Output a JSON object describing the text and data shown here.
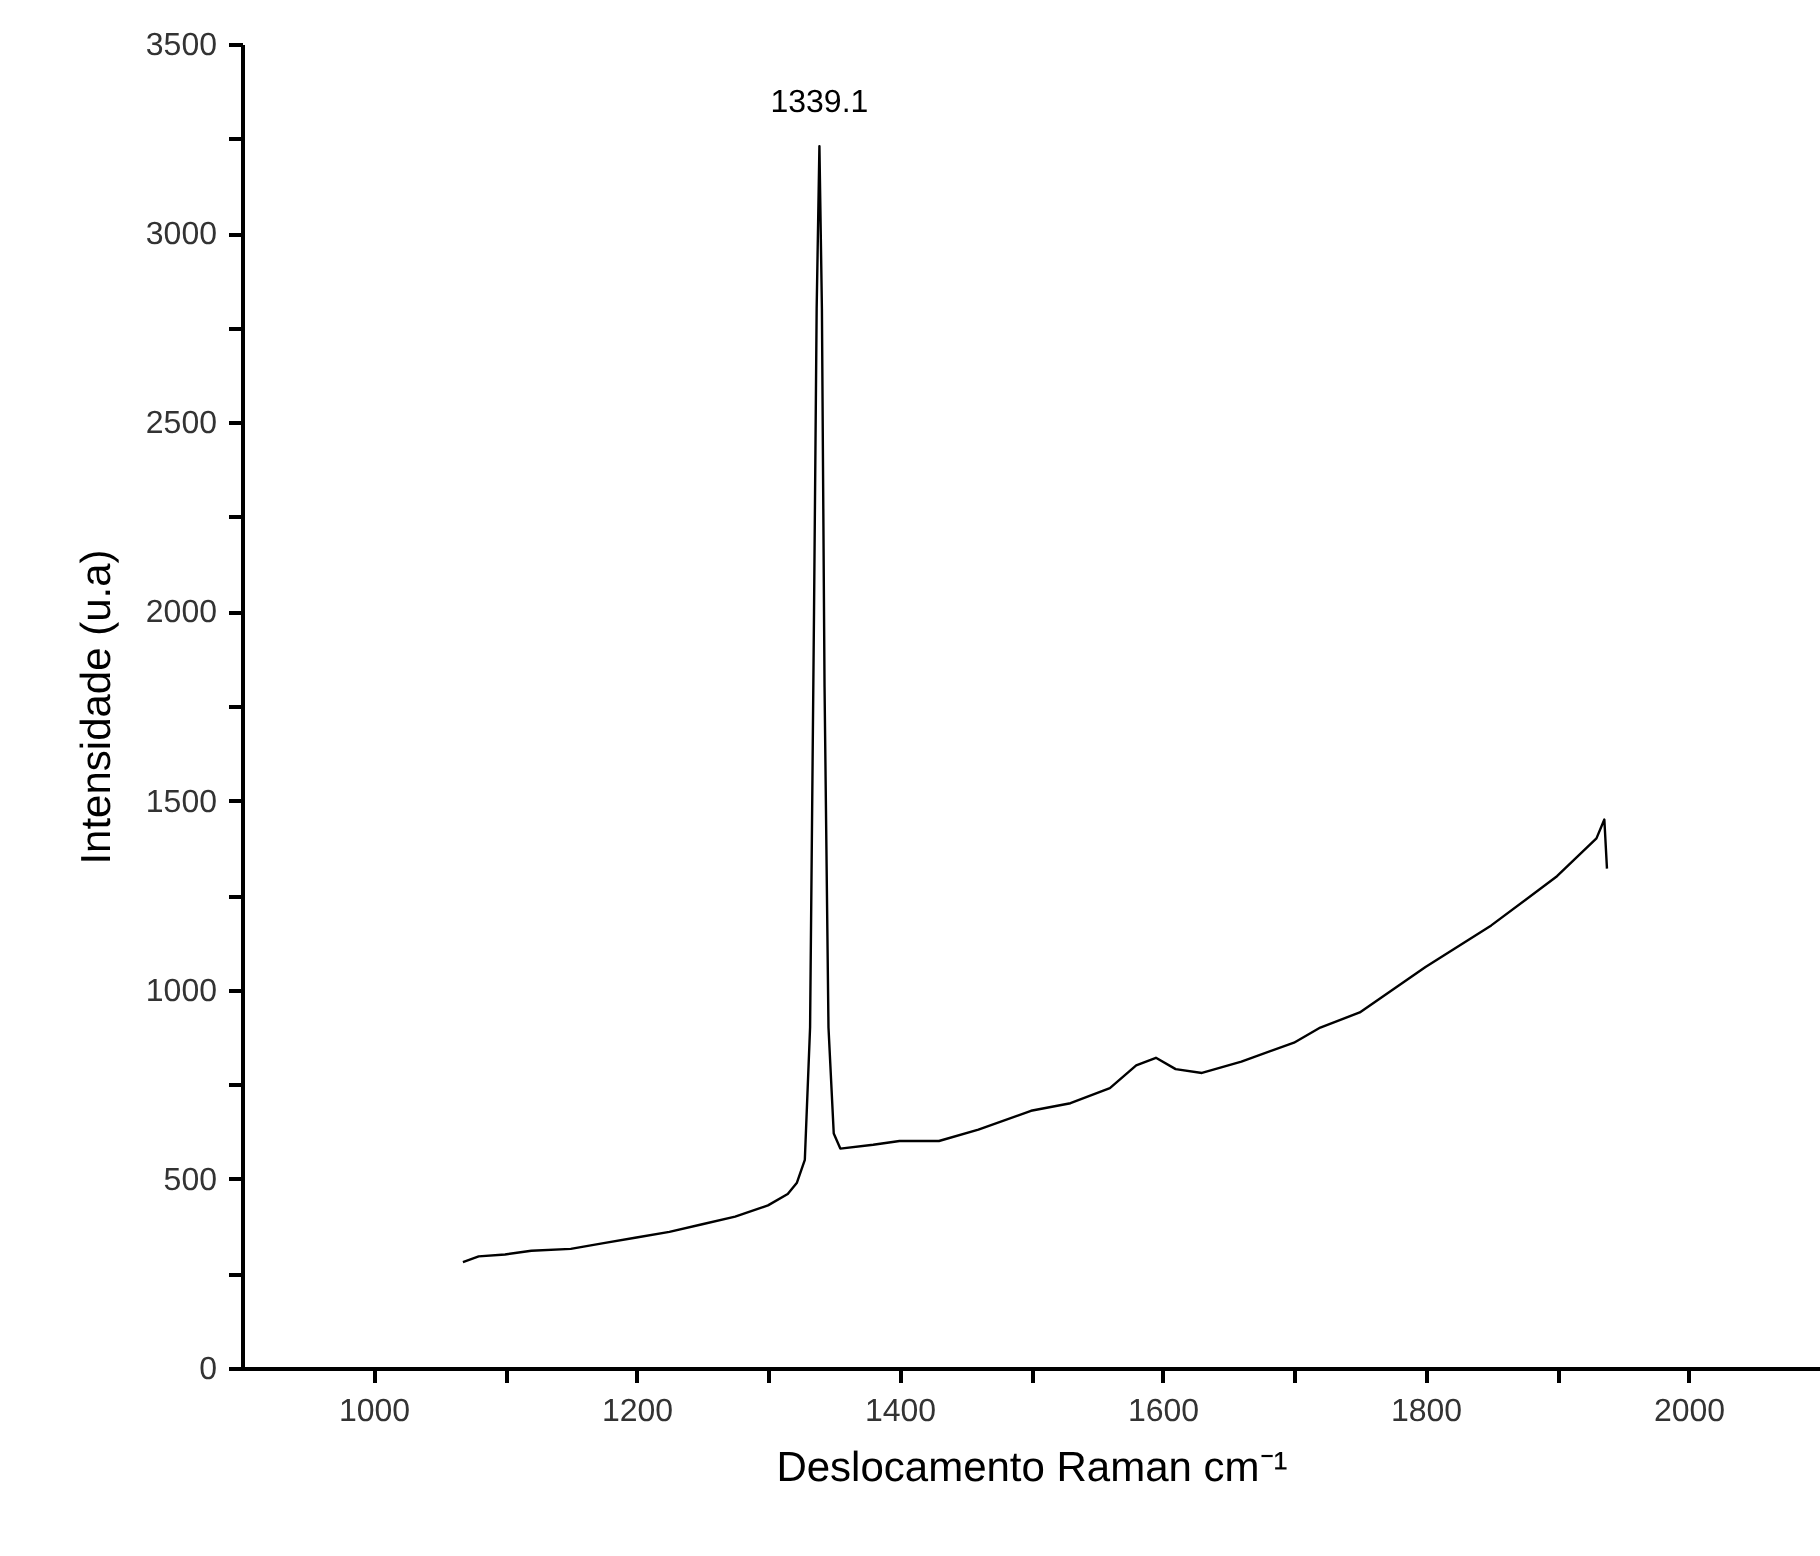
{
  "chart_data": {
    "type": "line",
    "xlabel": "Deslocamento Raman cm⁻¹",
    "ylabel": "Intensidade (u.a)",
    "xlim": [
      900,
      2100
    ],
    "xticks": [
      1000,
      {
        "value": 1100,
        "label": null
      },
      1200,
      {
        "value": 1300,
        "label": null
      },
      1400,
      {
        "value": 1500,
        "label": null
      },
      1600,
      {
        "value": 1700,
        "label": null
      },
      1800,
      {
        "value": 1900,
        "label": null
      },
      2000
    ],
    "ylim": [
      0,
      3500
    ],
    "yticks": [
      0,
      {
        "value": 250,
        "label": null
      },
      500,
      {
        "value": 750,
        "label": null
      },
      1000,
      {
        "value": 1250,
        "label": null
      },
      1500,
      {
        "value": 1750,
        "label": null
      },
      2000,
      {
        "value": 2250,
        "label": null
      },
      2500,
      {
        "value": 2750,
        "label": null
      },
      3000,
      {
        "value": 3250,
        "label": null
      },
      3500
    ],
    "grid": false,
    "marker": "none",
    "line_style": "solid",
    "annotations": [
      {
        "text": "1339.1",
        "x": 1339.1,
        "y": 3230
      }
    ],
    "series": [
      {
        "color": "#000000",
        "x": [
          1068,
          1080,
          1100,
          1120,
          1150,
          1175,
          1200,
          1225,
          1250,
          1275,
          1300,
          1315,
          1322,
          1328,
          1332,
          1335,
          1337,
          1339.1,
          1341,
          1343,
          1346,
          1350,
          1355,
          1380,
          1400,
          1430,
          1460,
          1500,
          1530,
          1560,
          1580,
          1595,
          1610,
          1630,
          1660,
          1700,
          1720,
          1750,
          1800,
          1850,
          1900,
          1930,
          1936,
          1938
        ],
        "values": [
          280,
          295,
          300,
          310,
          315,
          330,
          345,
          360,
          380,
          400,
          430,
          460,
          490,
          550,
          900,
          2000,
          2800,
          3230,
          2800,
          1800,
          900,
          620,
          580,
          590,
          600,
          600,
          630,
          680,
          700,
          740,
          800,
          820,
          790,
          780,
          810,
          860,
          900,
          940,
          1060,
          1170,
          1300,
          1400,
          1450,
          1320
        ]
      }
    ]
  }
}
